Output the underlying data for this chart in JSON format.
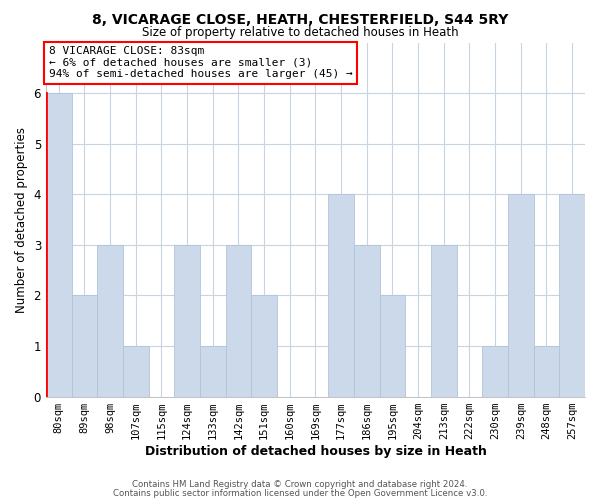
{
  "title1": "8, VICARAGE CLOSE, HEATH, CHESTERFIELD, S44 5RY",
  "title2": "Size of property relative to detached houses in Heath",
  "xlabel": "Distribution of detached houses by size in Heath",
  "ylabel": "Number of detached properties",
  "categories": [
    "80sqm",
    "89sqm",
    "98sqm",
    "107sqm",
    "115sqm",
    "124sqm",
    "133sqm",
    "142sqm",
    "151sqm",
    "160sqm",
    "169sqm",
    "177sqm",
    "186sqm",
    "195sqm",
    "204sqm",
    "213sqm",
    "222sqm",
    "230sqm",
    "239sqm",
    "248sqm",
    "257sqm"
  ],
  "values": [
    6,
    2,
    3,
    1,
    0,
    3,
    1,
    3,
    2,
    0,
    0,
    4,
    3,
    2,
    0,
    3,
    0,
    1,
    4,
    1,
    4
  ],
  "bar_color": "#ccd9ea",
  "bar_edge_color": "#b0c4d8",
  "highlight_index": 0,
  "highlight_edge_color": "red",
  "annotation_box_text": "8 VICARAGE CLOSE: 83sqm\n← 6% of detached houses are smaller (3)\n94% of semi-detached houses are larger (45) →",
  "annotation_box_edge_color": "red",
  "ylim": [
    0,
    7
  ],
  "yticks": [
    0,
    1,
    2,
    3,
    4,
    5,
    6,
    7
  ],
  "footer1": "Contains HM Land Registry data © Crown copyright and database right 2024.",
  "footer2": "Contains public sector information licensed under the Open Government Licence v3.0.",
  "grid_color": "#c8d4e0",
  "background_color": "#ffffff"
}
